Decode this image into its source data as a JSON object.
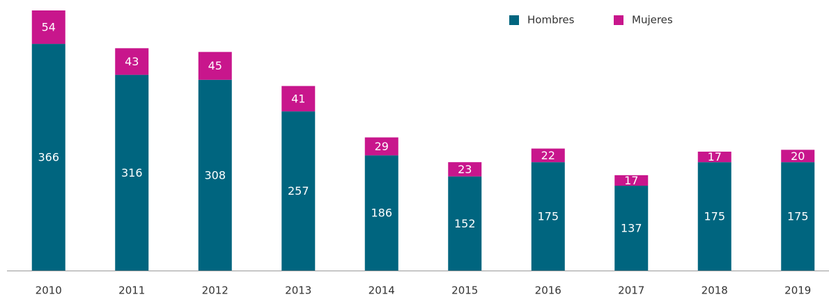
{
  "chart_data": {
    "type": "stacked_bar",
    "categories": [
      "2010",
      "2011",
      "2012",
      "2013",
      "2014",
      "2015",
      "2016",
      "2017",
      "2018",
      "2019"
    ],
    "series": [
      {
        "name": "Hombres",
        "color": "#00657f",
        "values": [
          366,
          316,
          308,
          257,
          186,
          152,
          175,
          137,
          175,
          175
        ]
      },
      {
        "name": "Mujeres",
        "color": "#c8168c",
        "values": [
          54,
          43,
          45,
          41,
          29,
          23,
          22,
          17,
          17,
          20
        ]
      }
    ],
    "legend": "top-right"
  }
}
